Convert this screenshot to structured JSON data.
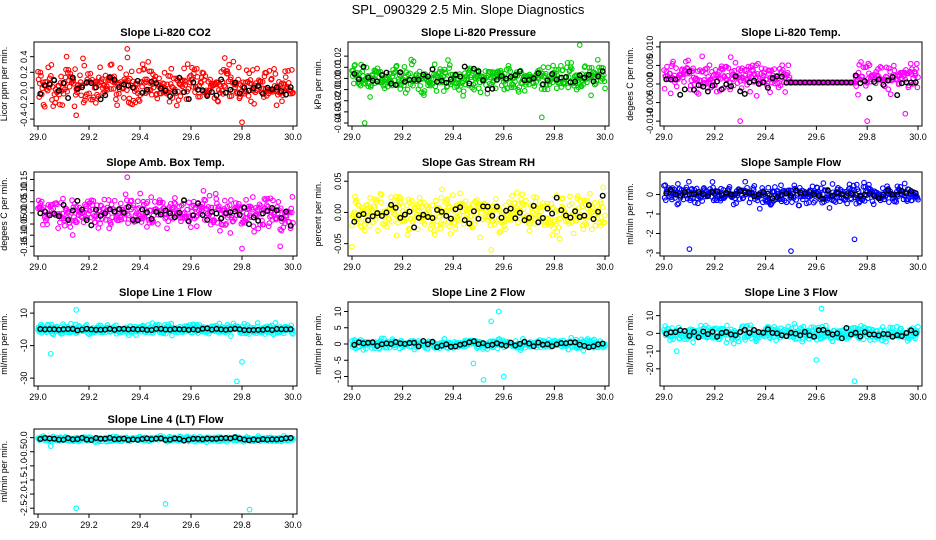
{
  "figure": {
    "title": "SPL_090329  2.5 Min. Slope Diagnostics"
  },
  "chart_data": [
    {
      "type": "scatter",
      "title": "Slope Li-820 CO2",
      "ylabel": "Licor ppm per min.",
      "color": "#ff0000",
      "xlim": [
        29.0,
        30.0
      ],
      "ylim": [
        -0.45,
        0.55
      ],
      "xticks": [
        29.0,
        29.2,
        29.4,
        29.6,
        29.8,
        30.0
      ],
      "xtick_labels": [
        "29.0",
        "29.2",
        "29.4",
        "29.6",
        "29.8",
        "30.0"
      ],
      "yticks": [
        -0.4,
        -0.2,
        0.0,
        0.2,
        0.4
      ],
      "ytick_labels": [
        "-0.4",
        "-0.2",
        "0.0",
        "0.2",
        "0.4"
      ],
      "series_pattern": {
        "center": 0.03,
        "spread": 0.25,
        "black_center": 0.0,
        "black_spread": 0.15,
        "flat_from": null,
        "flat_to": null
      },
      "outliers": [
        [
          29.35,
          0.5
        ],
        [
          29.8,
          -0.44
        ],
        [
          29.15,
          -0.35
        ]
      ]
    },
    {
      "type": "scatter",
      "title": "Slope Li-820 Pressure",
      "ylabel": "kPa per min.",
      "color": "#00cc00",
      "xlim": [
        29.0,
        30.0
      ],
      "ylim": [
        -0.04,
        0.03
      ],
      "xticks": [
        29.0,
        29.2,
        29.4,
        29.6,
        29.8,
        30.0
      ],
      "xtick_labels": [
        "29.0",
        "29.2",
        "29.4",
        "29.6",
        "29.8",
        "30.0"
      ],
      "yticks": [
        -0.04,
        -0.03,
        -0.02,
        -0.01,
        0.0,
        0.01,
        0.02
      ],
      "ytick_labels": [
        "-0.04",
        "-0.03",
        "-0.02",
        "-0.01",
        "0.00",
        "0.01",
        "0.02"
      ],
      "series_pattern": {
        "center": 0.0,
        "spread": 0.012,
        "black_center": 0.0,
        "black_spread": 0.008,
        "flat_from": null,
        "flat_to": null
      },
      "outliers": [
        [
          29.05,
          -0.04
        ],
        [
          29.9,
          0.03
        ],
        [
          29.75,
          -0.035
        ]
      ]
    },
    {
      "type": "scatter",
      "title": "Slope Li-820 Temp.",
      "ylabel": "degees C per min.",
      "color": "#ff00ff",
      "xlim": [
        29.0,
        30.0
      ],
      "ylim": [
        -0.0105,
        0.0105
      ],
      "xticks": [
        29.0,
        29.2,
        29.4,
        29.6,
        29.8,
        30.0
      ],
      "xtick_labels": [
        "29.0",
        "29.2",
        "29.4",
        "29.6",
        "29.8",
        "30.0"
      ],
      "yticks": [
        -0.01,
        -0.005,
        0.0,
        0.005,
        0.01
      ],
      "ytick_labels": [
        "-0.010",
        "-0.005",
        "0.000",
        "0.005",
        "0.010"
      ],
      "series_pattern": {
        "center": 0.002,
        "spread": 0.004,
        "black_center": 0.0,
        "black_spread": 0.003,
        "flat_from": 29.5,
        "flat_to": 29.75
      },
      "outliers": [
        [
          29.3,
          -0.01
        ],
        [
          29.8,
          -0.01
        ],
        [
          29.95,
          -0.008
        ]
      ]
    },
    {
      "type": "scatter",
      "title": "Slope Amb. Box Temp.",
      "ylabel": "degees C per min.",
      "color": "#ff00ff",
      "xlim": [
        29.0,
        30.0
      ],
      "ylim": [
        -0.18,
        0.17
      ],
      "xticks": [
        29.0,
        29.2,
        29.4,
        29.6,
        29.8,
        30.0
      ],
      "xtick_labels": [
        "29.0",
        "29.2",
        "29.4",
        "29.6",
        "29.8",
        "30.0"
      ],
      "yticks": [
        -0.15,
        -0.1,
        -0.05,
        0.0,
        0.05,
        0.1,
        0.15
      ],
      "ytick_labels": [
        "-0.15",
        "-0.10",
        "-0.05",
        "0.00",
        "0.05",
        "0.10",
        "0.15"
      ],
      "series_pattern": {
        "center": 0.0,
        "spread": 0.07,
        "black_center": 0.0,
        "black_spread": 0.05,
        "flat_from": null,
        "flat_to": null
      },
      "outliers": [
        [
          29.35,
          0.16
        ],
        [
          29.8,
          -0.16
        ],
        [
          29.95,
          -0.15
        ]
      ]
    },
    {
      "type": "scatter",
      "title": "Slope Gas Stream RH",
      "ylabel": "percent per min.",
      "color": "#ffff00",
      "xlim": [
        29.0,
        30.0
      ],
      "ylim": [
        -0.065,
        0.06
      ],
      "xticks": [
        29.0,
        29.2,
        29.4,
        29.6,
        29.8,
        30.0
      ],
      "xtick_labels": [
        "29.0",
        "29.2",
        "29.4",
        "29.6",
        "29.8",
        "30.0"
      ],
      "yticks": [
        -0.05,
        0.0,
        0.05
      ],
      "ytick_labels": [
        "-0.05",
        "0.00",
        "0.05"
      ],
      "series_pattern": {
        "center": 0.0,
        "spread": 0.03,
        "black_center": 0.0,
        "black_spread": 0.02,
        "flat_from": null,
        "flat_to": null
      },
      "outliers": [
        [
          29.55,
          -0.06
        ],
        [
          29.0,
          -0.055
        ]
      ]
    },
    {
      "type": "scatter",
      "title": "Slope Sample Flow",
      "ylabel": "ml/min per min.",
      "color": "#0000ff",
      "xlim": [
        29.0,
        30.0
      ],
      "ylim": [
        -3.0,
        1.0
      ],
      "xticks": [
        29.0,
        29.2,
        29.4,
        29.6,
        29.8,
        30.0
      ],
      "xtick_labels": [
        "29.0",
        "29.2",
        "29.4",
        "29.6",
        "29.8",
        "30.0"
      ],
      "yticks": [
        -3,
        -2,
        -1,
        0
      ],
      "ytick_labels": [
        "-3",
        "-2",
        "-1",
        "0"
      ],
      "series_pattern": {
        "center": 0.0,
        "spread": 0.5,
        "black_center": 0.0,
        "black_spread": 0.2,
        "flat_from": null,
        "flat_to": null
      },
      "outliers": [
        [
          29.1,
          -2.8
        ],
        [
          29.5,
          -2.9
        ],
        [
          29.75,
          -2.3
        ]
      ]
    },
    {
      "type": "scatter",
      "title": "Slope Line 1 Flow",
      "ylabel": "ml/min per min.",
      "color": "#00ffff",
      "xlim": [
        29.0,
        30.0
      ],
      "ylim": [
        -33,
        15
      ],
      "xticks": [
        29.0,
        29.2,
        29.4,
        29.6,
        29.8,
        30.0
      ],
      "xtick_labels": [
        "29.0",
        "29.2",
        "29.4",
        "29.6",
        "29.8",
        "30.0"
      ],
      "yticks": [
        -30,
        -10,
        10
      ],
      "ytick_labels": [
        "-30",
        "-10",
        "10"
      ],
      "series_pattern": {
        "center": 0.0,
        "spread": 3.0,
        "black_center": 0.0,
        "black_spread": 0.5,
        "flat_from": null,
        "flat_to": null
      },
      "outliers": [
        [
          29.78,
          -32
        ],
        [
          29.8,
          -20
        ],
        [
          29.15,
          12
        ],
        [
          29.05,
          -15
        ]
      ]
    },
    {
      "type": "scatter",
      "title": "Slope Line 2 Flow",
      "ylabel": "ml/min per min.",
      "color": "#00ffff",
      "xlim": [
        29.0,
        30.0
      ],
      "ylim": [
        -12,
        12
      ],
      "xticks": [
        29.0,
        29.2,
        29.4,
        29.6,
        29.8,
        30.0
      ],
      "xtick_labels": [
        "29.0",
        "29.2",
        "29.4",
        "29.6",
        "29.8",
        "30.0"
      ],
      "yticks": [
        -10,
        -5,
        0,
        5,
        10
      ],
      "ytick_labels": [
        "-10",
        "-5",
        "0",
        "5",
        "10"
      ],
      "series_pattern": {
        "center": 0.0,
        "spread": 1.5,
        "black_center": 0.0,
        "black_spread": 1.0,
        "flat_from": null,
        "flat_to": null
      },
      "outliers": [
        [
          29.52,
          -11
        ],
        [
          29.6,
          -10
        ],
        [
          29.55,
          7
        ],
        [
          29.58,
          10
        ],
        [
          29.48,
          -6
        ]
      ]
    },
    {
      "type": "scatter",
      "title": "Slope Line 3 Flow",
      "ylabel": "ml/min per min.",
      "color": "#00ffff",
      "xlim": [
        29.0,
        30.0
      ],
      "ylim": [
        -28,
        16
      ],
      "xticks": [
        29.0,
        29.2,
        29.4,
        29.6,
        29.8,
        30.0
      ],
      "xtick_labels": [
        "29.0",
        "29.2",
        "29.4",
        "29.6",
        "29.8",
        "30.0"
      ],
      "yticks": [
        -20,
        -10,
        0,
        10
      ],
      "ytick_labels": [
        "-20",
        "-10",
        "0",
        "10"
      ],
      "series_pattern": {
        "center": 0.0,
        "spread": 4.0,
        "black_center": 0.0,
        "black_spread": 2.5,
        "flat_from": null,
        "flat_to": null
      },
      "outliers": [
        [
          29.75,
          -27
        ],
        [
          29.62,
          14
        ],
        [
          29.05,
          -10
        ],
        [
          29.6,
          -15
        ]
      ]
    },
    {
      "type": "scatter",
      "title": "Slope Line 4 (LT) Flow",
      "ylabel": "ml/min per min.",
      "color": "#00ffff",
      "xlim": [
        29.0,
        30.0
      ],
      "ylim": [
        -2.6,
        0.2
      ],
      "xticks": [
        29.0,
        29.2,
        29.4,
        29.6,
        29.8,
        30.0
      ],
      "xtick_labels": [
        "29.0",
        "29.2",
        "29.4",
        "29.6",
        "29.8",
        "30.0"
      ],
      "yticks": [
        -2.5,
        -2.0,
        -1.5,
        -1.0,
        -0.5,
        0.0
      ],
      "ytick_labels": [
        "-2.5",
        "-2.0",
        "-1.5",
        "-1.0",
        "-0.5",
        "0.0"
      ],
      "series_pattern": {
        "center": -0.05,
        "spread": 0.08,
        "black_center": -0.05,
        "black_spread": 0.05,
        "flat_from": null,
        "flat_to": null
      },
      "outliers": [
        [
          29.15,
          -2.5
        ],
        [
          29.5,
          -2.35
        ],
        [
          29.83,
          -2.55
        ],
        [
          29.05,
          -0.3
        ]
      ]
    }
  ]
}
